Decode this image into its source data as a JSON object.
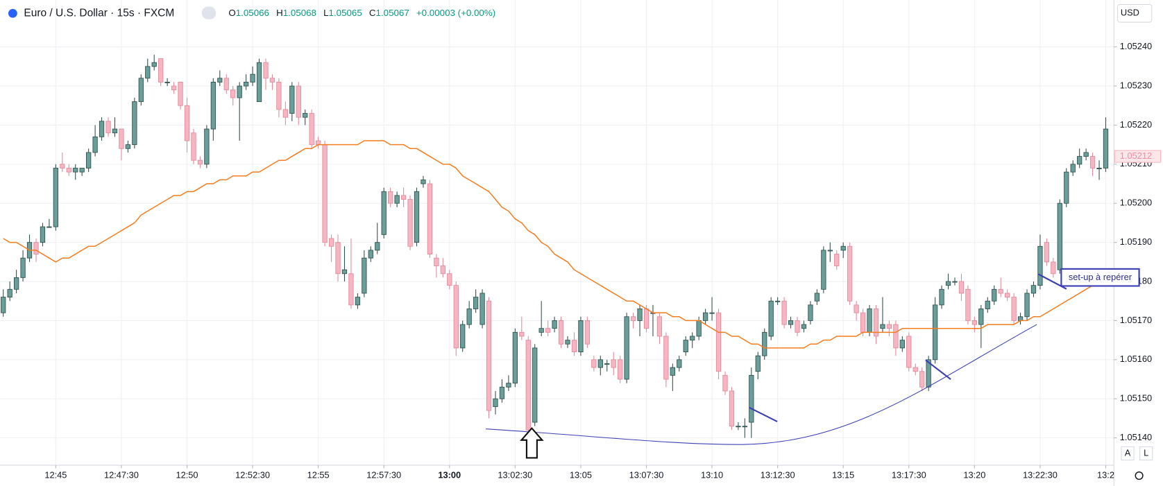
{
  "chart_data": {
    "type": "candlestick",
    "title": "Euro / U.S. Dollar · 15s · FXCM",
    "ohlc_header": {
      "open_label": "O",
      "open": "1.05066",
      "high_label": "H",
      "high": "1.05068",
      "low_label": "L",
      "low": "1.05065",
      "close_label": "C",
      "close": "1.05067",
      "change": "+0.00003 (+0.00%)"
    },
    "currency": "USD",
    "annotation": "set-up à repérer",
    "buttons": [
      "A",
      "L"
    ],
    "ylim": [
      1.05133,
      1.05252
    ],
    "yticks": [
      {
        "value": 1.0514,
        "label": "1.05140"
      },
      {
        "value": 1.0515,
        "label": "1.05150"
      },
      {
        "value": 1.0516,
        "label": "1.05160"
      },
      {
        "value": 1.0517,
        "label": "1.05170"
      },
      {
        "value": 1.0518,
        "label": "1.05180"
      },
      {
        "value": 1.0519,
        "label": "1.05190"
      },
      {
        "value": 1.052,
        "label": "1.05200"
      },
      {
        "value": 1.0521,
        "label": "1.05210"
      },
      {
        "value": 1.0522,
        "label": "1.05220"
      },
      {
        "value": 1.0523,
        "label": "1.05230"
      },
      {
        "value": 1.0524,
        "label": "1.05240"
      }
    ],
    "xticks": [
      {
        "value": 8,
        "label": "12:45"
      },
      {
        "value": 18,
        "label": "12:47:30"
      },
      {
        "value": 28,
        "label": "12:50"
      },
      {
        "value": 38,
        "label": "12:52:30"
      },
      {
        "value": 48,
        "label": "12:55"
      },
      {
        "value": 58,
        "label": "12:57:30"
      },
      {
        "value": 68,
        "label": "13:00"
      },
      {
        "value": 78,
        "label": "13:02:30"
      },
      {
        "value": 88,
        "label": "13:05"
      },
      {
        "value": 98,
        "label": "13:07:30"
      },
      {
        "value": 108,
        "label": "13:10"
      },
      {
        "value": 118,
        "label": "13:12:30"
      },
      {
        "value": 128,
        "label": "13:15"
      },
      {
        "value": 138,
        "label": "13:17:30"
      },
      {
        "value": 148,
        "label": "13:20"
      },
      {
        "value": 158,
        "label": "13:22:30"
      },
      {
        "value": 168,
        "label": "13:2"
      }
    ],
    "last_price": 1.05212,
    "up_color": "#6a9e99",
    "down_color": "#f7b5c1",
    "ma_color": "#f57c1f",
    "grid": true,
    "candles": [
      [
        1.05172,
        1.05178,
        1.05171,
        1.05176
      ],
      [
        1.05176,
        1.0518,
        1.05175,
        1.05178
      ],
      [
        1.05178,
        1.05183,
        1.05177,
        1.05181
      ],
      [
        1.05181,
        1.05188,
        1.0518,
        1.05186
      ],
      [
        1.05186,
        1.05192,
        1.05185,
        1.0519
      ],
      [
        1.0519,
        1.05191,
        1.05185,
        1.05187
      ],
      [
        1.0519,
        1.05195,
        1.05189,
        1.05194
      ],
      [
        1.05194,
        1.05196,
        1.05194,
        1.05194
      ],
      [
        1.05194,
        1.0521,
        1.05193,
        1.05209
      ],
      [
        1.0521,
        1.05213,
        1.05208,
        1.05209
      ],
      [
        1.05209,
        1.0521,
        1.05207,
        1.05208
      ],
      [
        1.05208,
        1.0521,
        1.05206,
        1.05209
      ],
      [
        1.05208,
        1.05209,
        1.05207,
        1.05209
      ],
      [
        1.05209,
        1.05214,
        1.05208,
        1.05213
      ],
      [
        1.05213,
        1.0522,
        1.05212,
        1.05217
      ],
      [
        1.05217,
        1.05222,
        1.05216,
        1.05221
      ],
      [
        1.05221,
        1.05222,
        1.05217,
        1.05218
      ],
      [
        1.05218,
        1.05222,
        1.05217,
        1.05219
      ],
      [
        1.05219,
        1.05219,
        1.05211,
        1.05214
      ],
      [
        1.05214,
        1.05216,
        1.05213,
        1.05215
      ],
      [
        1.05215,
        1.05227,
        1.05214,
        1.05226
      ],
      [
        1.05226,
        1.05233,
        1.05225,
        1.05232
      ],
      [
        1.05232,
        1.05237,
        1.05231,
        1.05235
      ],
      [
        1.05235,
        1.05238,
        1.05234,
        1.05236
      ],
      [
        1.05237,
        1.05237,
        1.0523,
        1.05231
      ],
      [
        1.05231,
        1.05232,
        1.0523,
        1.05231
      ],
      [
        1.0523,
        1.05231,
        1.05228,
        1.05229
      ],
      [
        1.05231,
        1.05231,
        1.05224,
        1.05225
      ],
      [
        1.05225,
        1.05227,
        1.05213,
        1.05216
      ],
      [
        1.05218,
        1.05219,
        1.0521,
        1.05211
      ],
      [
        1.05211,
        1.05212,
        1.05209,
        1.0521
      ],
      [
        1.0521,
        1.0522,
        1.05209,
        1.05219
      ],
      [
        1.05219,
        1.05232,
        1.05216,
        1.05231
      ],
      [
        1.05231,
        1.05234,
        1.0523,
        1.05232
      ],
      [
        1.05232,
        1.05233,
        1.05228,
        1.05229
      ],
      [
        1.05229,
        1.0523,
        1.05225,
        1.05227
      ],
      [
        1.05227,
        1.05231,
        1.05216,
        1.0523
      ],
      [
        1.0523,
        1.05233,
        1.05229,
        1.05231
      ],
      [
        1.05231,
        1.05235,
        1.0523,
        1.05233
      ],
      [
        1.05226,
        1.05237,
        1.05226,
        1.05236
      ],
      [
        1.05236,
        1.05237,
        1.05229,
        1.05232
      ],
      [
        1.05232,
        1.05233,
        1.05229,
        1.05231
      ],
      [
        1.05231,
        1.05232,
        1.05222,
        1.05224
      ],
      [
        1.05224,
        1.05226,
        1.0522,
        1.05222
      ],
      [
        1.05223,
        1.05231,
        1.05221,
        1.0523
      ],
      [
        1.0523,
        1.05231,
        1.0522,
        1.05222
      ],
      [
        1.05222,
        1.05224,
        1.0522,
        1.05223
      ],
      [
        1.05223,
        1.05224,
        1.05214,
        1.05215
      ],
      [
        1.05216,
        1.05217,
        1.05214,
        1.05215
      ],
      [
        1.05215,
        1.05216,
        1.05189,
        1.0519
      ],
      [
        1.05191,
        1.05192,
        1.05185,
        1.05189
      ],
      [
        1.0519,
        1.05192,
        1.0518,
        1.05182
      ],
      [
        1.05182,
        1.05189,
        1.0518,
        1.05183
      ],
      [
        1.05182,
        1.05191,
        1.05173,
        1.05174
      ],
      [
        1.05174,
        1.05177,
        1.05173,
        1.05176
      ],
      [
        1.05177,
        1.05188,
        1.05176,
        1.05186
      ],
      [
        1.05186,
        1.05189,
        1.05185,
        1.05188
      ],
      [
        1.05188,
        1.05195,
        1.05187,
        1.0519
      ],
      [
        1.05192,
        1.05204,
        1.05191,
        1.05203
      ],
      [
        1.05203,
        1.05204,
        1.05199,
        1.052
      ],
      [
        1.052,
        1.05203,
        1.05199,
        1.05202
      ],
      [
        1.05202,
        1.05204,
        1.05199,
        1.05201
      ],
      [
        1.05201,
        1.05202,
        1.05188,
        1.05189
      ],
      [
        1.0519,
        1.05204,
        1.05189,
        1.05203
      ],
      [
        1.05205,
        1.05207,
        1.05204,
        1.05206
      ],
      [
        1.05205,
        1.05206,
        1.05186,
        1.05187
      ],
      [
        1.05186,
        1.05187,
        1.05181,
        1.05184
      ],
      [
        1.05184,
        1.05186,
        1.05181,
        1.05182
      ],
      [
        1.05182,
        1.05183,
        1.05178,
        1.05179
      ],
      [
        1.05179,
        1.0518,
        1.05161,
        1.05163
      ],
      [
        1.05163,
        1.0517,
        1.05162,
        1.05169
      ],
      [
        1.05169,
        1.05175,
        1.05168,
        1.05173
      ],
      [
        1.05173,
        1.05178,
        1.05172,
        1.05176
      ],
      [
        1.05169,
        1.05178,
        1.05168,
        1.05177
      ],
      [
        1.05175,
        1.05176,
        1.05145,
        1.05147
      ],
      [
        1.05148,
        1.05152,
        1.05146,
        1.0515
      ],
      [
        1.0515,
        1.05155,
        1.05149,
        1.05153
      ],
      [
        1.05153,
        1.05156,
        1.05152,
        1.05154
      ],
      [
        1.05154,
        1.05168,
        1.05153,
        1.05167
      ],
      [
        1.05167,
        1.05171,
        1.05165,
        1.05166
      ],
      [
        1.05165,
        1.05166,
        1.05141,
        1.05142
      ],
      [
        1.05144,
        1.05164,
        1.05143,
        1.05163
      ],
      [
        1.05167,
        1.05175,
        1.05166,
        1.05168
      ],
      [
        1.05168,
        1.0517,
        1.05166,
        1.05167
      ],
      [
        1.05168,
        1.05171,
        1.05167,
        1.0517
      ],
      [
        1.0517,
        1.05171,
        1.05163,
        1.05164
      ],
      [
        1.05164,
        1.05166,
        1.05163,
        1.05165
      ],
      [
        1.05165,
        1.05167,
        1.05161,
        1.05162
      ],
      [
        1.05162,
        1.05171,
        1.05161,
        1.0517
      ],
      [
        1.0517,
        1.05171,
        1.05163,
        1.05164
      ],
      [
        1.0516,
        1.05161,
        1.05157,
        1.05158
      ],
      [
        1.05158,
        1.05161,
        1.05156,
        1.0516
      ],
      [
        1.05159,
        1.0516,
        1.05157,
        1.05159
      ],
      [
        1.0516,
        1.05162,
        1.05156,
        1.05158
      ],
      [
        1.0516,
        1.05161,
        1.05154,
        1.05155
      ],
      [
        1.05155,
        1.05172,
        1.05154,
        1.05171
      ],
      [
        1.05171,
        1.05172,
        1.05168,
        1.0517
      ],
      [
        1.0517,
        1.05174,
        1.05166,
        1.05173
      ],
      [
        1.05173,
        1.05174,
        1.05167,
        1.05168
      ],
      [
        1.05172,
        1.05174,
        1.05166,
        1.05172
      ],
      [
        1.05171,
        1.05172,
        1.05164,
        1.05166
      ],
      [
        1.05166,
        1.05167,
        1.05153,
        1.05155
      ],
      [
        1.05156,
        1.05159,
        1.05152,
        1.05158
      ],
      [
        1.05158,
        1.05161,
        1.05157,
        1.0516
      ],
      [
        1.05162,
        1.05166,
        1.05161,
        1.05165
      ],
      [
        1.05165,
        1.05167,
        1.05163,
        1.05166
      ],
      [
        1.05166,
        1.05171,
        1.05165,
        1.0517
      ],
      [
        1.0517,
        1.05173,
        1.05169,
        1.05172
      ],
      [
        1.05172,
        1.05176,
        1.0517,
        1.05172
      ],
      [
        1.05172,
        1.05173,
        1.05155,
        1.05157
      ],
      [
        1.05156,
        1.05157,
        1.05151,
        1.05152
      ],
      [
        1.05152,
        1.05153,
        1.05142,
        1.05143
      ],
      [
        1.05143,
        1.05144,
        1.05142,
        1.05143
      ],
      [
        1.05143,
        1.05145,
        1.0514,
        1.05143
      ],
      [
        1.05144,
        1.05158,
        1.0514,
        1.05156
      ],
      [
        1.05157,
        1.05162,
        1.05155,
        1.05161
      ],
      [
        1.05161,
        1.05168,
        1.0516,
        1.05167
      ],
      [
        1.05166,
        1.05176,
        1.05165,
        1.05175
      ],
      [
        1.05175,
        1.05176,
        1.05174,
        1.05175
      ],
      [
        1.05175,
        1.05176,
        1.05168,
        1.05169
      ],
      [
        1.05169,
        1.05171,
        1.05168,
        1.0517
      ],
      [
        1.0517,
        1.05171,
        1.05166,
        1.05167
      ],
      [
        1.05168,
        1.0517,
        1.05167,
        1.05169
      ],
      [
        1.0517,
        1.05175,
        1.05169,
        1.05174
      ],
      [
        1.05175,
        1.05178,
        1.05174,
        1.05177
      ],
      [
        1.05178,
        1.05189,
        1.05177,
        1.05188
      ],
      [
        1.05188,
        1.0519,
        1.05185,
        1.05188
      ],
      [
        1.05187,
        1.05188,
        1.05183,
        1.05184
      ],
      [
        1.05188,
        1.0519,
        1.05186,
        1.05189
      ],
      [
        1.05189,
        1.0519,
        1.05174,
        1.05175
      ],
      [
        1.05174,
        1.05175,
        1.0517,
        1.05172
      ],
      [
        1.05172,
        1.05173,
        1.05166,
        1.05167
      ],
      [
        1.05167,
        1.05174,
        1.05166,
        1.05173
      ],
      [
        1.05173,
        1.05174,
        1.05164,
        1.05166
      ],
      [
        1.05168,
        1.05176,
        1.05167,
        1.05169
      ],
      [
        1.05169,
        1.0517,
        1.05166,
        1.05168
      ],
      [
        1.05169,
        1.0517,
        1.05161,
        1.05163
      ],
      [
        1.05163,
        1.05166,
        1.05162,
        1.05165
      ],
      [
        1.05166,
        1.05167,
        1.05157,
        1.05158
      ],
      [
        1.05158,
        1.05159,
        1.05156,
        1.05157
      ],
      [
        1.05157,
        1.05158,
        1.05152,
        1.05153
      ],
      [
        1.05153,
        1.05161,
        1.05152,
        1.0516
      ],
      [
        1.0516,
        1.05176,
        1.05159,
        1.05174
      ],
      [
        1.05174,
        1.05179,
        1.05173,
        1.05178
      ],
      [
        1.05179,
        1.05182,
        1.05178,
        1.0518
      ],
      [
        1.0518,
        1.05181,
        1.05179,
        1.0518
      ],
      [
        1.0518,
        1.05182,
        1.05175,
        1.05177
      ],
      [
        1.05178,
        1.05179,
        1.05169,
        1.0517
      ],
      [
        1.0517,
        1.05171,
        1.05167,
        1.05169
      ],
      [
        1.05169,
        1.05174,
        1.05163,
        1.05173
      ],
      [
        1.05173,
        1.05176,
        1.05172,
        1.05175
      ],
      [
        1.05175,
        1.05179,
        1.05174,
        1.05178
      ],
      [
        1.05178,
        1.05181,
        1.05176,
        1.05177
      ],
      [
        1.05177,
        1.05178,
        1.05175,
        1.05176
      ],
      [
        1.05176,
        1.05177,
        1.05169,
        1.0517
      ],
      [
        1.0517,
        1.05172,
        1.05169,
        1.05171
      ],
      [
        1.05171,
        1.05178,
        1.0517,
        1.05177
      ],
      [
        1.05177,
        1.0518,
        1.05176,
        1.05179
      ],
      [
        1.05179,
        1.05192,
        1.05178,
        1.05189
      ],
      [
        1.0519,
        1.05191,
        1.05184,
        1.05185
      ],
      [
        1.05185,
        1.05186,
        1.05181,
        1.05182
      ],
      [
        1.05183,
        1.05201,
        1.05182,
        1.052
      ],
      [
        1.052,
        1.05209,
        1.05199,
        1.05208
      ],
      [
        1.05208,
        1.05211,
        1.05207,
        1.0521
      ],
      [
        1.0521,
        1.05214,
        1.05209,
        1.05212
      ],
      [
        1.05212,
        1.05214,
        1.05211,
        1.05213
      ],
      [
        1.05212,
        1.05213,
        1.05207,
        1.05209
      ],
      [
        1.05209,
        1.05211,
        1.05206,
        1.05209
      ],
      [
        1.05209,
        1.05222,
        1.05208,
        1.05219
      ]
    ],
    "ma_values": [
      1.05191,
      1.0519,
      1.0519,
      1.05189,
      1.05188,
      1.05188,
      1.05187,
      1.05186,
      1.05185,
      1.05186,
      1.05186,
      1.05187,
      1.05188,
      1.05189,
      1.05189,
      1.0519,
      1.05191,
      1.05192,
      1.05193,
      1.05194,
      1.05195,
      1.05197,
      1.05198,
      1.05199,
      1.052,
      1.05201,
      1.05202,
      1.05202,
      1.05203,
      1.05203,
      1.05204,
      1.05205,
      1.05205,
      1.05206,
      1.05206,
      1.05207,
      1.05207,
      1.05207,
      1.05208,
      1.05208,
      1.05209,
      1.0521,
      1.05211,
      1.05211,
      1.05212,
      1.05213,
      1.05214,
      1.05214,
      1.05215,
      1.05215,
      1.05215,
      1.05215,
      1.05215,
      1.05215,
      1.05215,
      1.05216,
      1.05216,
      1.05216,
      1.05216,
      1.05215,
      1.05215,
      1.05215,
      1.05214,
      1.05214,
      1.05213,
      1.05212,
      1.05211,
      1.0521,
      1.0521,
      1.05209,
      1.05207,
      1.05206,
      1.05205,
      1.05204,
      1.05203,
      1.05201,
      1.05199,
      1.05198,
      1.05196,
      1.05195,
      1.05193,
      1.05192,
      1.0519,
      1.05189,
      1.05187,
      1.05186,
      1.05185,
      1.05183,
      1.05182,
      1.05181,
      1.0518,
      1.05179,
      1.05178,
      1.05177,
      1.05176,
      1.05175,
      1.05175,
      1.05174,
      1.05173,
      1.05172,
      1.05172,
      1.05172,
      1.05171,
      1.05171,
      1.0517,
      1.0517,
      1.0517,
      1.05169,
      1.05168,
      1.05167,
      1.05167,
      1.05166,
      1.05166,
      1.05165,
      1.05164,
      1.05164,
      1.05163,
      1.05163,
      1.05163,
      1.05163,
      1.05163,
      1.05163,
      1.05163,
      1.05164,
      1.05164,
      1.05165,
      1.05165,
      1.05166,
      1.05166,
      1.05166,
      1.05166,
      1.05167,
      1.05167,
      1.05167,
      1.05167,
      1.05167,
      1.05167,
      1.05168,
      1.05168,
      1.05168,
      1.05168,
      1.05168,
      1.05168,
      1.05168,
      1.05168,
      1.05168,
      1.05168,
      1.05168,
      1.05168,
      1.05168,
      1.05169,
      1.05169,
      1.05169,
      1.05169,
      1.05169,
      1.0517,
      1.0517,
      1.05171,
      1.05171,
      1.05172,
      1.05173,
      1.05174,
      1.05175,
      1.05176,
      1.05177,
      1.05178,
      1.05179,
      1.05179,
      1.0518
    ]
  }
}
